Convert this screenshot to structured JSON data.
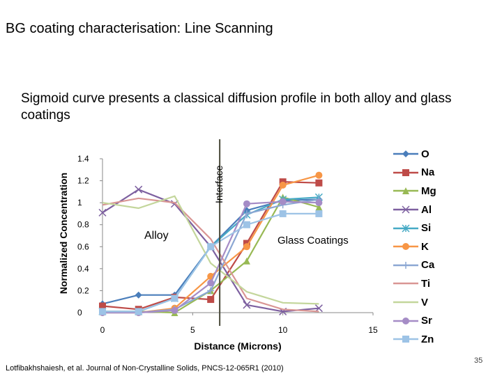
{
  "slide": {
    "title": "BG coating characterisation:  Line Scanning",
    "subtitle": "Sigmoid curve presents a classical diffusion profile in both alloy and glass coatings",
    "citation": "Lotfibakhshaiesh, et al.  Journal of Non-Crystalline Solids, PNCS-12-065R1 (2010)",
    "page_number": "35"
  },
  "chart_data": {
    "type": "line",
    "xlabel": "Distance (Microns)",
    "ylabel": "Normalized Concentration",
    "xlim": [
      0,
      15
    ],
    "ylim": [
      0,
      1.4
    ],
    "x_ticks": [
      "0",
      "5",
      "10",
      "15"
    ],
    "y_ticks": [
      "0",
      "0.2",
      "0.4",
      "0.6",
      "0.8",
      "1",
      "1.2",
      "1.4"
    ],
    "grid": false,
    "legend_position": "right",
    "annotations": {
      "interface_label": "Interface",
      "interface_x": 6.5,
      "alloy_label": "Alloy",
      "glass_label": "Glass Coatings"
    },
    "series": [
      {
        "name": "O",
        "color": "#4a7ebb",
        "marker": "diamond",
        "x": [
          0,
          2,
          4,
          6,
          8,
          10,
          12
        ],
        "y": [
          0.08,
          0.16,
          0.16,
          0.6,
          0.93,
          1.02,
          1.03
        ]
      },
      {
        "name": "Na",
        "color": "#be4b48",
        "marker": "square",
        "x": [
          0,
          2,
          4,
          6,
          8,
          10,
          12
        ],
        "y": [
          0.06,
          0.03,
          0.14,
          0.12,
          0.63,
          1.19,
          1.18
        ]
      },
      {
        "name": "Mg",
        "color": "#98b954",
        "marker": "triangle",
        "x": [
          0,
          2,
          4,
          6,
          8,
          10,
          12
        ],
        "y": [
          0.01,
          0.01,
          0.0,
          0.2,
          0.47,
          1.05,
          0.96
        ]
      },
      {
        "name": "Al",
        "color": "#7d60a0",
        "marker": "x",
        "x": [
          0,
          2,
          4,
          6,
          8,
          10,
          12
        ],
        "y": [
          0.91,
          1.12,
          0.99,
          0.6,
          0.07,
          0.01,
          0.04
        ]
      },
      {
        "name": "Si",
        "color": "#46aac5",
        "marker": "star",
        "x": [
          0,
          2,
          4,
          6,
          8,
          10,
          12
        ],
        "y": [
          0.01,
          0.01,
          0.13,
          0.6,
          0.89,
          1.03,
          1.05
        ]
      },
      {
        "name": "K",
        "color": "#f79646",
        "marker": "circle",
        "x": [
          0,
          2,
          4,
          6,
          8,
          10,
          12
        ],
        "y": [
          0.0,
          0.0,
          0.04,
          0.33,
          0.6,
          1.16,
          1.25
        ]
      },
      {
        "name": "Ca",
        "color": "#8ca7d3",
        "marker": "plus",
        "x": [
          0,
          2,
          4,
          6,
          8,
          10,
          12
        ],
        "y": [
          0.0,
          0.0,
          0.03,
          0.2,
          0.9,
          0.98,
          1.03
        ]
      },
      {
        "name": "Ti",
        "color": "#d99694",
        "marker": "none",
        "x": [
          0,
          2,
          4,
          6,
          8,
          10,
          12
        ],
        "y": [
          0.98,
          1.04,
          1.0,
          0.67,
          0.13,
          0.03,
          0.01
        ]
      },
      {
        "name": "V",
        "color": "#c3d69b",
        "marker": "none",
        "x": [
          0,
          2,
          4,
          6,
          8,
          10,
          12
        ],
        "y": [
          1.0,
          0.95,
          1.06,
          0.45,
          0.19,
          0.09,
          0.08
        ]
      },
      {
        "name": "Sr",
        "color": "#a58cc6",
        "marker": "circle",
        "x": [
          0,
          2,
          4,
          6,
          8,
          10,
          12
        ],
        "y": [
          0.0,
          0.0,
          0.02,
          0.27,
          0.99,
          1.01,
          1.0
        ]
      },
      {
        "name": "Zn",
        "color": "#9dc3e6",
        "marker": "square",
        "x": [
          0,
          2,
          4,
          6,
          8,
          10,
          12
        ],
        "y": [
          0.01,
          0.01,
          0.13,
          0.6,
          0.8,
          0.9,
          0.9
        ]
      }
    ]
  }
}
